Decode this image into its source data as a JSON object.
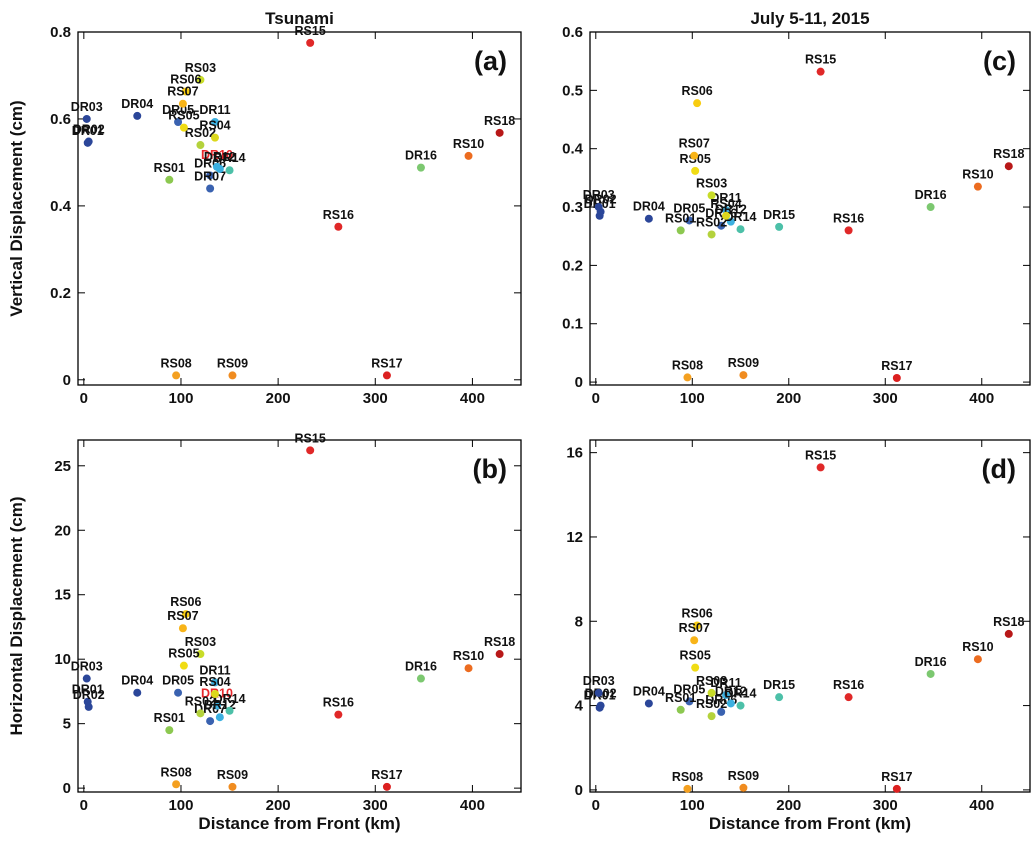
{
  "chart_data": [
    {
      "type": "scatter",
      "title": "Tsunami",
      "panel": "(a)",
      "ylabel": "Vertical  Displacement  (cm)",
      "labels": [
        "DR01",
        "DR02",
        "DR03",
        "DR04",
        "DR05",
        "DR06",
        "DR07",
        "DR10",
        "DR11",
        "DR12",
        "DR14",
        "DR16",
        "RS01",
        "RS02",
        "RS03",
        "RS04",
        "RS05",
        "RS06",
        "RS07",
        "RS08",
        "RS09",
        "RS10",
        "RS15",
        "RS16",
        "RS17",
        "RS18"
      ],
      "x": [
        4,
        5,
        3,
        55,
        97,
        130,
        130,
        137,
        135,
        140,
        150,
        347,
        88,
        120,
        120,
        135,
        103,
        105,
        102,
        95,
        153,
        396,
        233,
        262,
        312,
        428
      ],
      "y": [
        0.545,
        0.548,
        0.6,
        0.607,
        0.593,
        0.47,
        0.44,
        0.49,
        0.593,
        0.485,
        0.482,
        0.488,
        0.46,
        0.54,
        0.69,
        0.557,
        0.58,
        0.663,
        0.635,
        0.01,
        0.01,
        0.515,
        0.775,
        0.352,
        0.01,
        0.568
      ],
      "colors": [
        "#2b4699",
        "#2b4699",
        "#2b4699",
        "#2b4699",
        "#3a62b0",
        "#3a62b0",
        "#3a62b0",
        "#3cb0e0",
        "#3cb0e0",
        "#3cb0e0",
        "#4cc0a8",
        "#7cc870",
        "#8cc850",
        "#b4d23c",
        "#c8dc28",
        "#dcd81c",
        "#f0dc14",
        "#f8cc10",
        "#f8b418",
        "#f4a020",
        "#f08c20",
        "#ec6c20",
        "#e02828",
        "#e02828",
        "#dc2020",
        "#b81818"
      ],
      "highlight_index": 7,
      "highlight_color": "#e8282d",
      "xlim": [
        -6,
        450
      ],
      "xticks": [
        0,
        100,
        200,
        300,
        400
      ],
      "ylim": [
        -0.012,
        0.8
      ],
      "yticks": [
        0,
        0.2,
        0.4,
        0.6,
        0.8
      ]
    },
    {
      "type": "scatter",
      "panel": "(b)",
      "ylabel": "Horizontal  Displacement  (cm)",
      "xlabel": "Distance from Front  (km)",
      "labels": [
        "DR01",
        "DR02",
        "DR03",
        "DR04",
        "DR05",
        "DR07",
        "DR10",
        "DR11",
        "DR12",
        "DR14",
        "DR16",
        "RS01",
        "RS02",
        "RS03",
        "RS04",
        "RS05",
        "RS06",
        "RS07",
        "RS08",
        "RS09",
        "RS10",
        "RS15",
        "RS16",
        "RS17",
        "RS18"
      ],
      "x": [
        4,
        5,
        3,
        55,
        97,
        130,
        137,
        135,
        140,
        150,
        347,
        88,
        120,
        120,
        135,
        103,
        105,
        102,
        95,
        153,
        396,
        233,
        262,
        312,
        428
      ],
      "y": [
        6.7,
        6.3,
        8.5,
        7.4,
        7.4,
        5.2,
        6.4,
        8.2,
        5.5,
        6.0,
        8.5,
        4.5,
        5.8,
        10.4,
        7.3,
        9.5,
        13.5,
        12.4,
        0.3,
        0.1,
        9.3,
        26.2,
        5.7,
        0.1,
        10.4
      ],
      "colors": [
        "#2b4699",
        "#2b4699",
        "#2b4699",
        "#2b4699",
        "#3a62b0",
        "#3a62b0",
        "#3cb0e0",
        "#3cb0e0",
        "#3cb0e0",
        "#4cc0a8",
        "#7cc870",
        "#8cc850",
        "#b4d23c",
        "#c8dc28",
        "#dcd81c",
        "#f0dc14",
        "#f8cc10",
        "#f8b418",
        "#f4a020",
        "#f08c20",
        "#ec6c20",
        "#e02828",
        "#e02828",
        "#dc2020",
        "#b81818"
      ],
      "highlight_index": 6,
      "highlight_color": "#e8282d",
      "xlim": [
        -6,
        450
      ],
      "xticks": [
        0,
        100,
        200,
        300,
        400
      ],
      "ylim": [
        -0.3,
        27
      ],
      "yticks": [
        0,
        5,
        10,
        15,
        20,
        25
      ]
    },
    {
      "type": "scatter",
      "title": "July  5-11,  2015",
      "panel": "(c)",
      "labels": [
        "DR01",
        "DR02",
        "DR03",
        "DR04",
        "DR05",
        "DR06",
        "DR11",
        "DR12",
        "DR14",
        "DR15",
        "DR16",
        "RS01",
        "RS02",
        "RS03",
        "RS04",
        "RS05",
        "RS06",
        "RS07",
        "RS08",
        "RS09",
        "RS10",
        "RS15",
        "RS16",
        "RS17",
        "RS18"
      ],
      "x": [
        4,
        5,
        3,
        55,
        97,
        130,
        135,
        140,
        150,
        190,
        347,
        88,
        120,
        120,
        135,
        103,
        105,
        102,
        95,
        153,
        396,
        233,
        262,
        312,
        428
      ],
      "y": [
        0.285,
        0.292,
        0.3,
        0.28,
        0.277,
        0.268,
        0.295,
        0.275,
        0.262,
        0.266,
        0.3,
        0.26,
        0.253,
        0.32,
        0.285,
        0.362,
        0.478,
        0.388,
        0.008,
        0.012,
        0.335,
        0.532,
        0.26,
        0.007,
        0.37
      ],
      "colors": [
        "#2b4699",
        "#2b4699",
        "#2b4699",
        "#2b4699",
        "#3a62b0",
        "#3a62b0",
        "#3cb0e0",
        "#3cb0e0",
        "#4cc0a8",
        "#4cc0a8",
        "#7cc870",
        "#8cc850",
        "#b4d23c",
        "#c8dc28",
        "#dcd81c",
        "#f0dc14",
        "#f8cc10",
        "#f8b418",
        "#f4a020",
        "#f08c20",
        "#ec6c20",
        "#e02828",
        "#e02828",
        "#dc2020",
        "#b81818"
      ],
      "xlim": [
        -6,
        450
      ],
      "xticks": [
        0,
        100,
        200,
        300,
        400
      ],
      "ylim": [
        -0.005,
        0.6
      ],
      "yticks": [
        0,
        0.1,
        0.2,
        0.3,
        0.4,
        0.5,
        0.6
      ]
    },
    {
      "type": "scatter",
      "panel": "(d)",
      "xlabel": "Distance from Front  (km)",
      "labels": [
        "DR01",
        "DR02",
        "DR03",
        "DR04",
        "DR05",
        "DR06",
        "DR11",
        "DR12",
        "DR14",
        "DR15",
        "DR16",
        "RS01",
        "RS02",
        "RS03",
        "RS05",
        "RS06",
        "RS07",
        "RS08",
        "RS09",
        "RS10",
        "RS15",
        "RS16",
        "RS17",
        "RS18"
      ],
      "x": [
        4,
        5,
        3,
        55,
        97,
        130,
        135,
        140,
        150,
        190,
        347,
        88,
        120,
        120,
        103,
        105,
        102,
        95,
        153,
        396,
        233,
        262,
        312,
        428
      ],
      "y": [
        3.9,
        4.0,
        4.6,
        4.1,
        4.2,
        3.7,
        4.5,
        4.1,
        4.0,
        4.4,
        5.5,
        3.8,
        3.5,
        4.6,
        5.8,
        7.8,
        7.1,
        0.05,
        0.1,
        6.2,
        15.3,
        4.4,
        0.05,
        7.4
      ],
      "colors": [
        "#2b4699",
        "#2b4699",
        "#2b4699",
        "#2b4699",
        "#3a62b0",
        "#3a62b0",
        "#3cb0e0",
        "#3cb0e0",
        "#4cc0a8",
        "#4cc0a8",
        "#7cc870",
        "#8cc850",
        "#b4d23c",
        "#c8dc28",
        "#f0dc14",
        "#f8cc10",
        "#f8b418",
        "#f4a020",
        "#f08c20",
        "#ec6c20",
        "#e02828",
        "#e02828",
        "#dc2020",
        "#b81818"
      ],
      "xlim": [
        -6,
        450
      ],
      "xticks": [
        0,
        100,
        200,
        300,
        400
      ],
      "ylim": [
        -0.1,
        16.6
      ],
      "yticks": [
        0,
        4,
        8,
        12,
        16
      ]
    }
  ]
}
